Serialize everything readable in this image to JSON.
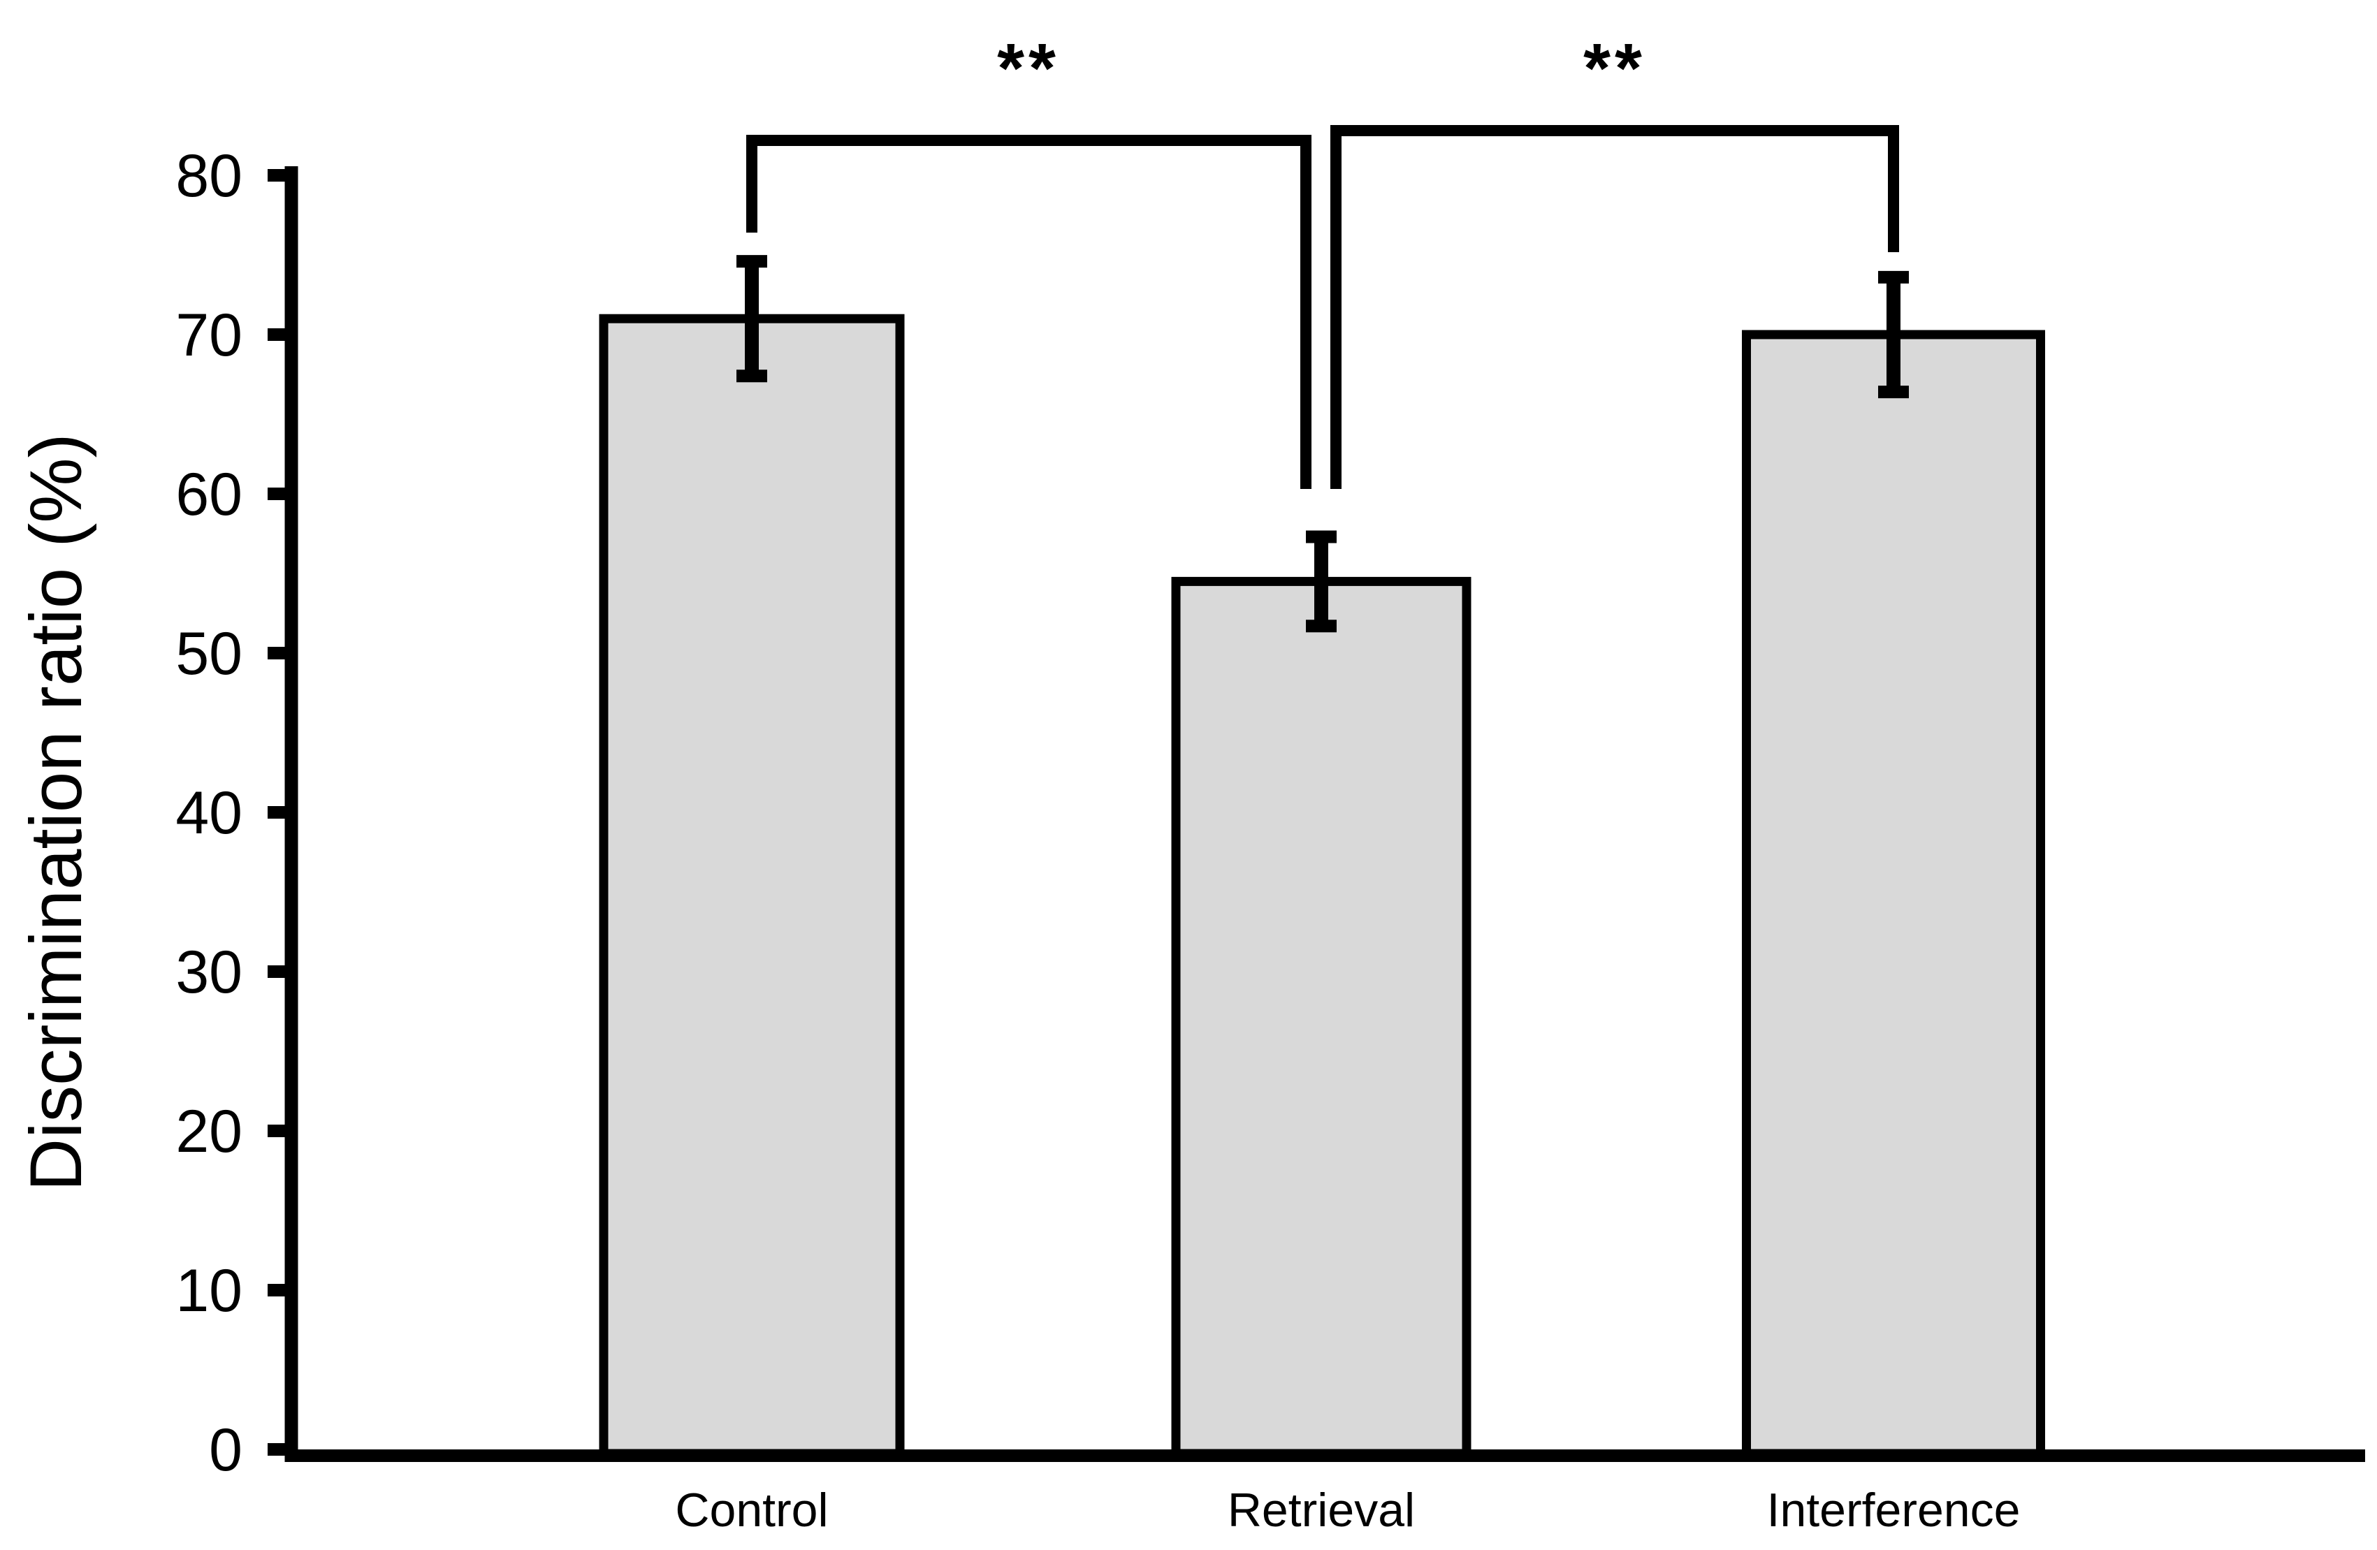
{
  "figure": {
    "background": "#ffffff",
    "ink_color": "#000000"
  },
  "chart_data": {
    "type": "bar",
    "title": "",
    "xlabel": "",
    "ylabel": "Discrimination ratio (%)",
    "categories": [
      "Control",
      "Retrieval",
      "Interference"
    ],
    "values": [
      71,
      54.5,
      70
    ],
    "errors": [
      3.6,
      2.8,
      3.6
    ],
    "ylim": [
      0,
      80
    ],
    "yticks": [
      0,
      10,
      20,
      30,
      40,
      50,
      60,
      70,
      80
    ],
    "grid": false,
    "legend": false,
    "bar_fill": "#d9d9d9",
    "bar_stroke": "#000000",
    "significance": [
      {
        "between": [
          "Control",
          "Retrieval"
        ],
        "label": "**"
      },
      {
        "between": [
          "Retrieval",
          "Interference"
        ],
        "label": "**"
      }
    ]
  }
}
